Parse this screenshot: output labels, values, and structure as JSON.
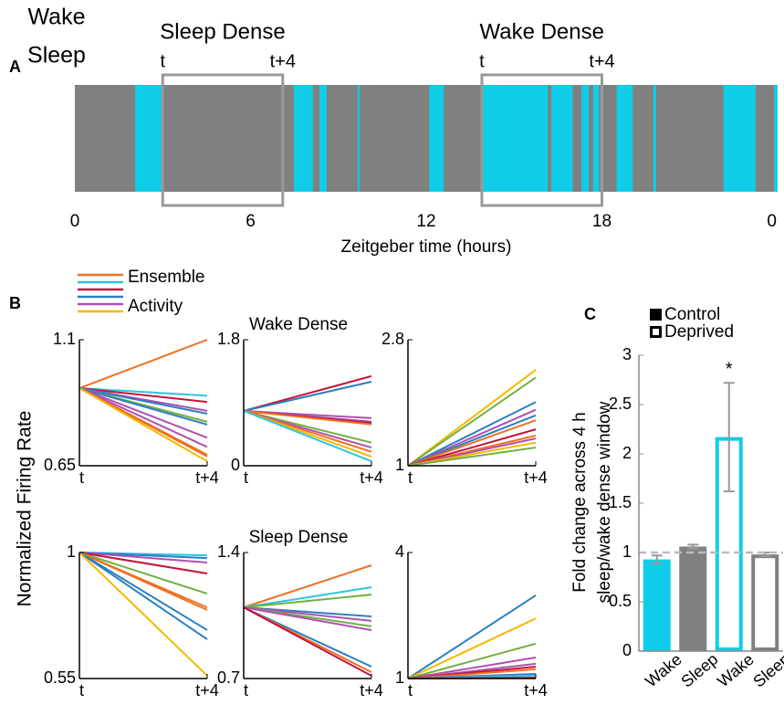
{
  "chart_data": [
    {
      "type": "timeline",
      "panel_label": "A",
      "legend": [
        {
          "label": "Wake",
          "color": "#0fcde8"
        },
        {
          "label": "Sleep",
          "color": "#808080"
        }
      ],
      "xlabel": "Zeitgeber time (hours)",
      "xlim": [
        0,
        24
      ],
      "xticks": [
        0,
        6,
        12,
        18,
        {
          "value": 24,
          "label": "0"
        }
      ],
      "wake_color": "#0fcde8",
      "sleep_color": "#808080",
      "window_color": "#999999",
      "wake_intervals": [
        [
          2.06,
          3.0
        ],
        [
          7.48,
          8.13
        ],
        [
          8.35,
          8.6
        ],
        [
          9.66,
          9.72
        ],
        [
          12.1,
          12.6
        ],
        [
          13.9,
          16.15
        ],
        [
          16.27,
          17.0
        ],
        [
          17.3,
          17.55
        ],
        [
          17.7,
          17.9
        ],
        [
          18.5,
          19.05
        ],
        [
          19.75,
          19.85
        ],
        [
          22.15,
          23.25
        ],
        [
          23.88,
          24
        ]
      ],
      "windows": [
        {
          "title": "Sleep Dense",
          "start": 3.0,
          "end": 7.1,
          "start_label": "t",
          "end_label": "t+4"
        },
        {
          "title": "Wake Dense",
          "start": 13.9,
          "end": 18.0,
          "start_label": "t",
          "end_label": "t+4"
        }
      ]
    },
    {
      "type": "line",
      "panel_label": "B",
      "ylabel": "Normalized Firing Rate",
      "legend": {
        "labels": [
          "Ensemble",
          "Activity"
        ],
        "colors": [
          "#f07020",
          "#2ec4e0",
          "#c0143c",
          "#2a7fc0",
          "#b050b0",
          "#f5b800"
        ]
      },
      "categories": [
        "t",
        "t+4"
      ],
      "ylim": [
        0.65,
        1.1
      ],
      "yticks": [
        0.65,
        1.1
      ],
      "series": [
        {
          "color": "#f07020",
          "values": [
            0.927,
            1.1
          ]
        },
        {
          "color": "#2ec4e0",
          "values": [
            0.927,
            0.9
          ]
        },
        {
          "color": "#c0143c",
          "values": [
            0.927,
            0.878
          ]
        },
        {
          "color": "#b050b0",
          "values": [
            0.927,
            0.846
          ]
        },
        {
          "color": "#2a7fc0",
          "values": [
            0.927,
            0.836
          ]
        },
        {
          "color": "#70b040",
          "values": [
            0.927,
            0.807
          ]
        },
        {
          "color": "#2a7fc0",
          "values": [
            0.927,
            0.797
          ]
        },
        {
          "color": "#b050b0",
          "values": [
            0.927,
            0.75
          ]
        },
        {
          "color": "#b050b0",
          "values": [
            0.927,
            0.717
          ]
        },
        {
          "color": "#f07020",
          "values": [
            0.927,
            0.689
          ]
        },
        {
          "color": "#f07020",
          "values": [
            0.927,
            0.683
          ]
        },
        {
          "color": "#f5b800",
          "values": [
            0.927,
            0.666
          ]
        }
      ]
    },
    {
      "type": "line",
      "title": "Wake Dense",
      "categories": [
        "t",
        "t+4"
      ],
      "ylim": [
        0,
        1.8
      ],
      "yticks": [
        0,
        1.8
      ],
      "series": [
        {
          "color": "#c0143c",
          "values": [
            0.783,
            1.28
          ]
        },
        {
          "color": "#2a7fc0",
          "values": [
            0.783,
            1.2
          ]
        },
        {
          "color": "#b050b0",
          "values": [
            0.783,
            0.68
          ]
        },
        {
          "color": "#b050b0",
          "values": [
            0.783,
            0.63
          ]
        },
        {
          "color": "#c0143c",
          "values": [
            0.783,
            0.61
          ]
        },
        {
          "color": "#f07020",
          "values": [
            0.783,
            0.59
          ]
        },
        {
          "color": "#70b040",
          "values": [
            0.783,
            0.33
          ]
        },
        {
          "color": "#b050b0",
          "values": [
            0.783,
            0.26
          ]
        },
        {
          "color": "#f07020",
          "values": [
            0.783,
            0.2
          ]
        },
        {
          "color": "#f5b800",
          "values": [
            0.783,
            0.13
          ]
        },
        {
          "color": "#2ec4e0",
          "values": [
            0.783,
            0.065
          ]
        }
      ]
    },
    {
      "type": "line",
      "categories": [
        "t",
        "t+4"
      ],
      "ylim": [
        1,
        2.8
      ],
      "yticks": [
        1,
        2.8
      ],
      "series": [
        {
          "color": "#f5b800",
          "values": [
            1,
            2.37
          ]
        },
        {
          "color": "#70b040",
          "values": [
            1,
            2.26
          ]
        },
        {
          "color": "#2a7fc0",
          "values": [
            1,
            1.91
          ]
        },
        {
          "color": "#b050b0",
          "values": [
            1,
            1.8
          ]
        },
        {
          "color": "#2a7fc0",
          "values": [
            1,
            1.72
          ]
        },
        {
          "color": "#f07020",
          "values": [
            1,
            1.65
          ]
        },
        {
          "color": "#c0143c",
          "values": [
            1,
            1.52
          ]
        },
        {
          "color": "#f07020",
          "values": [
            1,
            1.43
          ]
        },
        {
          "color": "#b050b0",
          "values": [
            1,
            1.39
          ]
        },
        {
          "color": "#f5b800",
          "values": [
            1,
            1.33
          ]
        },
        {
          "color": "#70b040",
          "values": [
            1,
            1.26
          ]
        }
      ]
    },
    {
      "type": "line",
      "categories": [
        "t",
        "t+4"
      ],
      "ylim": [
        0.55,
        1
      ],
      "yticks": [
        0.55,
        1
      ],
      "series": [
        {
          "color": "#2ec4e0",
          "values": [
            1,
            0.99
          ]
        },
        {
          "color": "#2a7fc0",
          "values": [
            1,
            0.98
          ]
        },
        {
          "color": "#b050b0",
          "values": [
            1,
            0.964
          ]
        },
        {
          "color": "#c0143c",
          "values": [
            1,
            0.925
          ]
        },
        {
          "color": "#70b040",
          "values": [
            1,
            0.853
          ]
        },
        {
          "color": "#f07020",
          "values": [
            1,
            0.804
          ]
        },
        {
          "color": "#f07020",
          "values": [
            1,
            0.795
          ]
        },
        {
          "color": "#2a7fc0",
          "values": [
            1,
            0.723
          ]
        },
        {
          "color": "#2a7fc0",
          "values": [
            1,
            0.69
          ]
        },
        {
          "color": "#f5b800",
          "values": [
            1,
            0.56
          ]
        }
      ]
    },
    {
      "type": "line",
      "title": "Sleep Dense",
      "categories": [
        "t",
        "t+4"
      ],
      "ylim": [
        0.7,
        1.4
      ],
      "yticks": [
        0.7,
        1.4
      ],
      "series": [
        {
          "color": "#f07020",
          "values": [
            1.095,
            1.329
          ]
        },
        {
          "color": "#2ec4e0",
          "values": [
            1.095,
            1.207
          ]
        },
        {
          "color": "#70b040",
          "values": [
            1.095,
            1.166
          ]
        },
        {
          "color": "#2a7fc0",
          "values": [
            1.095,
            1.045
          ]
        },
        {
          "color": "#b050b0",
          "values": [
            1.095,
            1.02
          ]
        },
        {
          "color": "#70b040",
          "values": [
            1.095,
            0.99
          ]
        },
        {
          "color": "#b050b0",
          "values": [
            1.095,
            0.969
          ]
        },
        {
          "color": "#2a7fc0",
          "values": [
            1.095,
            0.766
          ]
        },
        {
          "color": "#f07020",
          "values": [
            1.095,
            0.735
          ]
        },
        {
          "color": "#c0143c",
          "values": [
            1.095,
            0.715
          ]
        }
      ]
    },
    {
      "type": "line",
      "categories": [
        "t",
        "t+4"
      ],
      "ylim": [
        1,
        4
      ],
      "yticks": [
        1,
        4
      ],
      "series": [
        {
          "color": "#2a7fc0",
          "values": [
            1,
            2.98
          ]
        },
        {
          "color": "#f5b800",
          "values": [
            1,
            2.43
          ]
        },
        {
          "color": "#70b040",
          "values": [
            1,
            1.83
          ]
        },
        {
          "color": "#b050b0",
          "values": [
            1,
            1.5
          ]
        },
        {
          "color": "#b050b0",
          "values": [
            1,
            1.35
          ]
        },
        {
          "color": "#c0143c",
          "values": [
            1,
            1.28
          ]
        },
        {
          "color": "#f07020",
          "values": [
            1,
            1.22
          ]
        },
        {
          "color": "#2a7fc0",
          "values": [
            1,
            1.11
          ]
        },
        {
          "color": "#2ec4e0",
          "values": [
            1,
            1.07
          ]
        },
        {
          "color": "#c0143c",
          "values": [
            1,
            1.02
          ]
        }
      ]
    },
    {
      "type": "bar",
      "panel_label": "C",
      "ylabel": [
        "Fold change across 4 h",
        "sleep/wake dense window"
      ],
      "categories": [
        "Wake",
        "Sleep",
        "Wake",
        "Sleep"
      ],
      "colors": [
        "#0fcde8",
        "#808080",
        "#0fcde8",
        "#808080"
      ],
      "ylim": [
        0,
        3
      ],
      "yticks": [
        0,
        0.5,
        1,
        1.5,
        2,
        2.5,
        3
      ],
      "hline": 1,
      "error_color": "#999999",
      "series": [
        {
          "name": "Control",
          "style": "filled",
          "color": "#000000",
          "values": [
            0.93,
            1.06,
            null,
            null
          ],
          "errors": [
            0.04,
            0.02,
            null,
            null
          ]
        },
        {
          "name": "Deprived",
          "style": "outline",
          "color": "#000000",
          "values": [
            null,
            null,
            2.17,
            0.98
          ],
          "errors": [
            null,
            null,
            0.55,
            0.02
          ],
          "significance": [
            null,
            null,
            "*",
            null
          ]
        }
      ]
    }
  ]
}
